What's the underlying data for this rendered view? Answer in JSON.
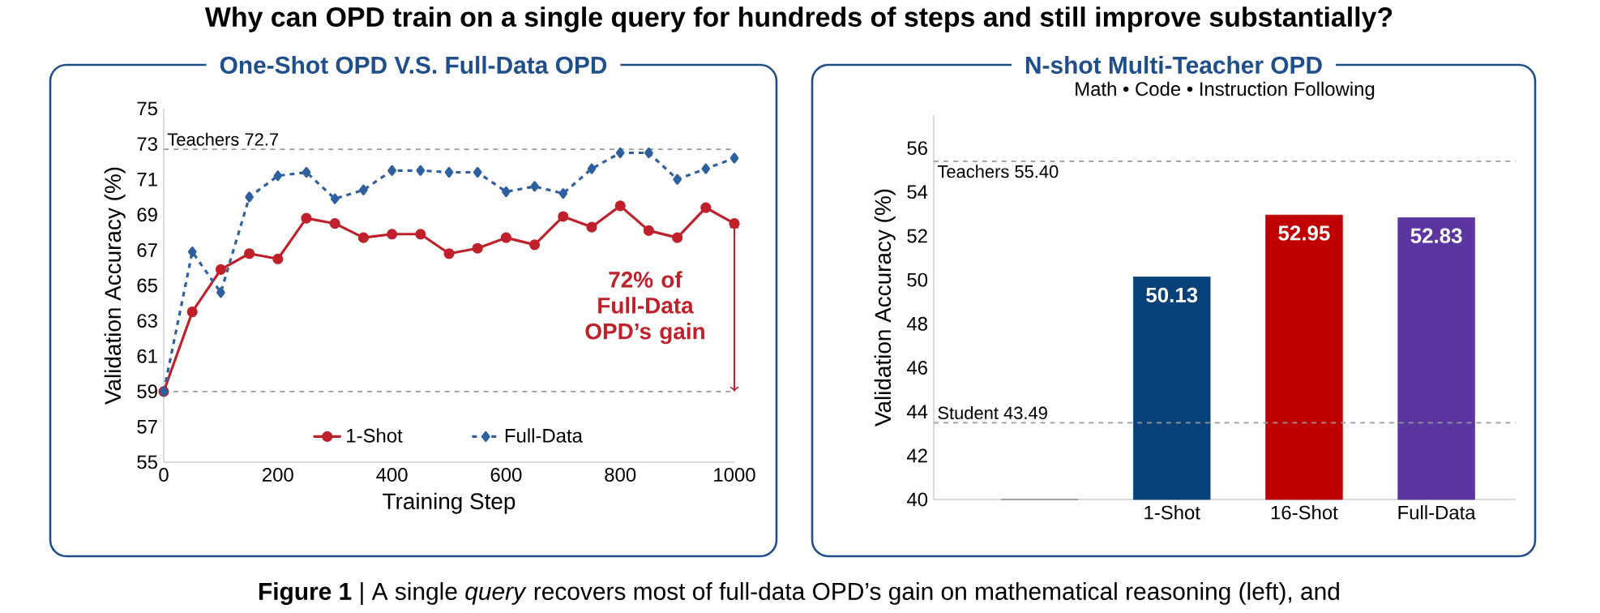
{
  "chart_data": [
    {
      "type": "line",
      "title": "One-Shot OPD V.S. Full-Data OPD",
      "xlabel": "Training Step",
      "ylabel": "Validation Accuracy (%)",
      "x": [
        0,
        50,
        100,
        150,
        200,
        250,
        300,
        350,
        400,
        450,
        500,
        550,
        600,
        650,
        700,
        750,
        800,
        850,
        900,
        950,
        1000
      ],
      "series": [
        {
          "name": "1-Shot",
          "color": "#c0202a",
          "marker": "circle",
          "line_style": "solid",
          "values": [
            59.0,
            63.5,
            65.9,
            66.8,
            66.5,
            68.8,
            68.5,
            67.7,
            67.9,
            67.9,
            66.8,
            67.1,
            67.7,
            67.3,
            68.9,
            68.3,
            69.5,
            68.1,
            67.7,
            69.4,
            68.5
          ]
        },
        {
          "name": "Full-Data",
          "color": "#2e5f9e",
          "marker": "diamond",
          "line_style": "dashed",
          "values": [
            59.0,
            66.9,
            64.6,
            70.0,
            71.2,
            71.4,
            69.9,
            70.4,
            71.5,
            71.5,
            71.4,
            71.4,
            70.3,
            70.6,
            70.2,
            71.6,
            72.5,
            72.5,
            71.0,
            71.6,
            72.2
          ]
        }
      ],
      "xlim": [
        0,
        1000
      ],
      "xticks": [
        0,
        200,
        400,
        600,
        800,
        1000
      ],
      "ylim": [
        55,
        75
      ],
      "yticks": [
        55,
        57,
        59,
        61,
        63,
        65,
        67,
        69,
        71,
        73,
        75
      ],
      "ref_lines": [
        {
          "axis": "y",
          "value": 72.7,
          "label": "Teachers 72.7",
          "color": "#999999",
          "line_style": "dashed"
        },
        {
          "axis": "y",
          "value": 59,
          "color": "#999999",
          "line_style": "dashed"
        }
      ],
      "annotations": [
        "Why can OPD train on a single query for hundreds of steps and still improve substantially?",
        {
          "text": "72% of Full-Data OPD’s gain",
          "x": 1000,
          "y": 68.5
        }
      ],
      "legend": "bottom",
      "grid": false
    },
    {
      "type": "bar",
      "title": "N-shot Multi-Teacher OPD",
      "subtitle": "Math • Code • Instruction Following",
      "ylabel": "Validation Accuracy (%)",
      "categories": [
        null,
        "1-Shot",
        "16-Shot",
        "Full-Data"
      ],
      "values": [
        40,
        50.13,
        52.95,
        52.83
      ],
      "colors": [
        "#808080",
        "#08407a",
        "#c00000",
        "#5b36a0"
      ],
      "value_labels": [
        null,
        "50.13",
        "52.95",
        "52.83"
      ],
      "ylim": [
        40,
        57.5
      ],
      "yticks": [
        40,
        42,
        44,
        46,
        48,
        50,
        52,
        54,
        56
      ],
      "ref_lines": [
        {
          "axis": "y",
          "value": 55.4,
          "label": "Teachers 55.40",
          "color": "#999999",
          "line_style": "dashed"
        },
        {
          "axis": "y",
          "value": 43.49,
          "label": "Student 43.49",
          "color": "#999999",
          "line_style": "dashed"
        }
      ],
      "annotations": [
        "**Figure 1** | A single *query* recovers most of full-data OPD’s gain on mathematical reasoning (left), and"
      ],
      "grid": false
    }
  ]
}
